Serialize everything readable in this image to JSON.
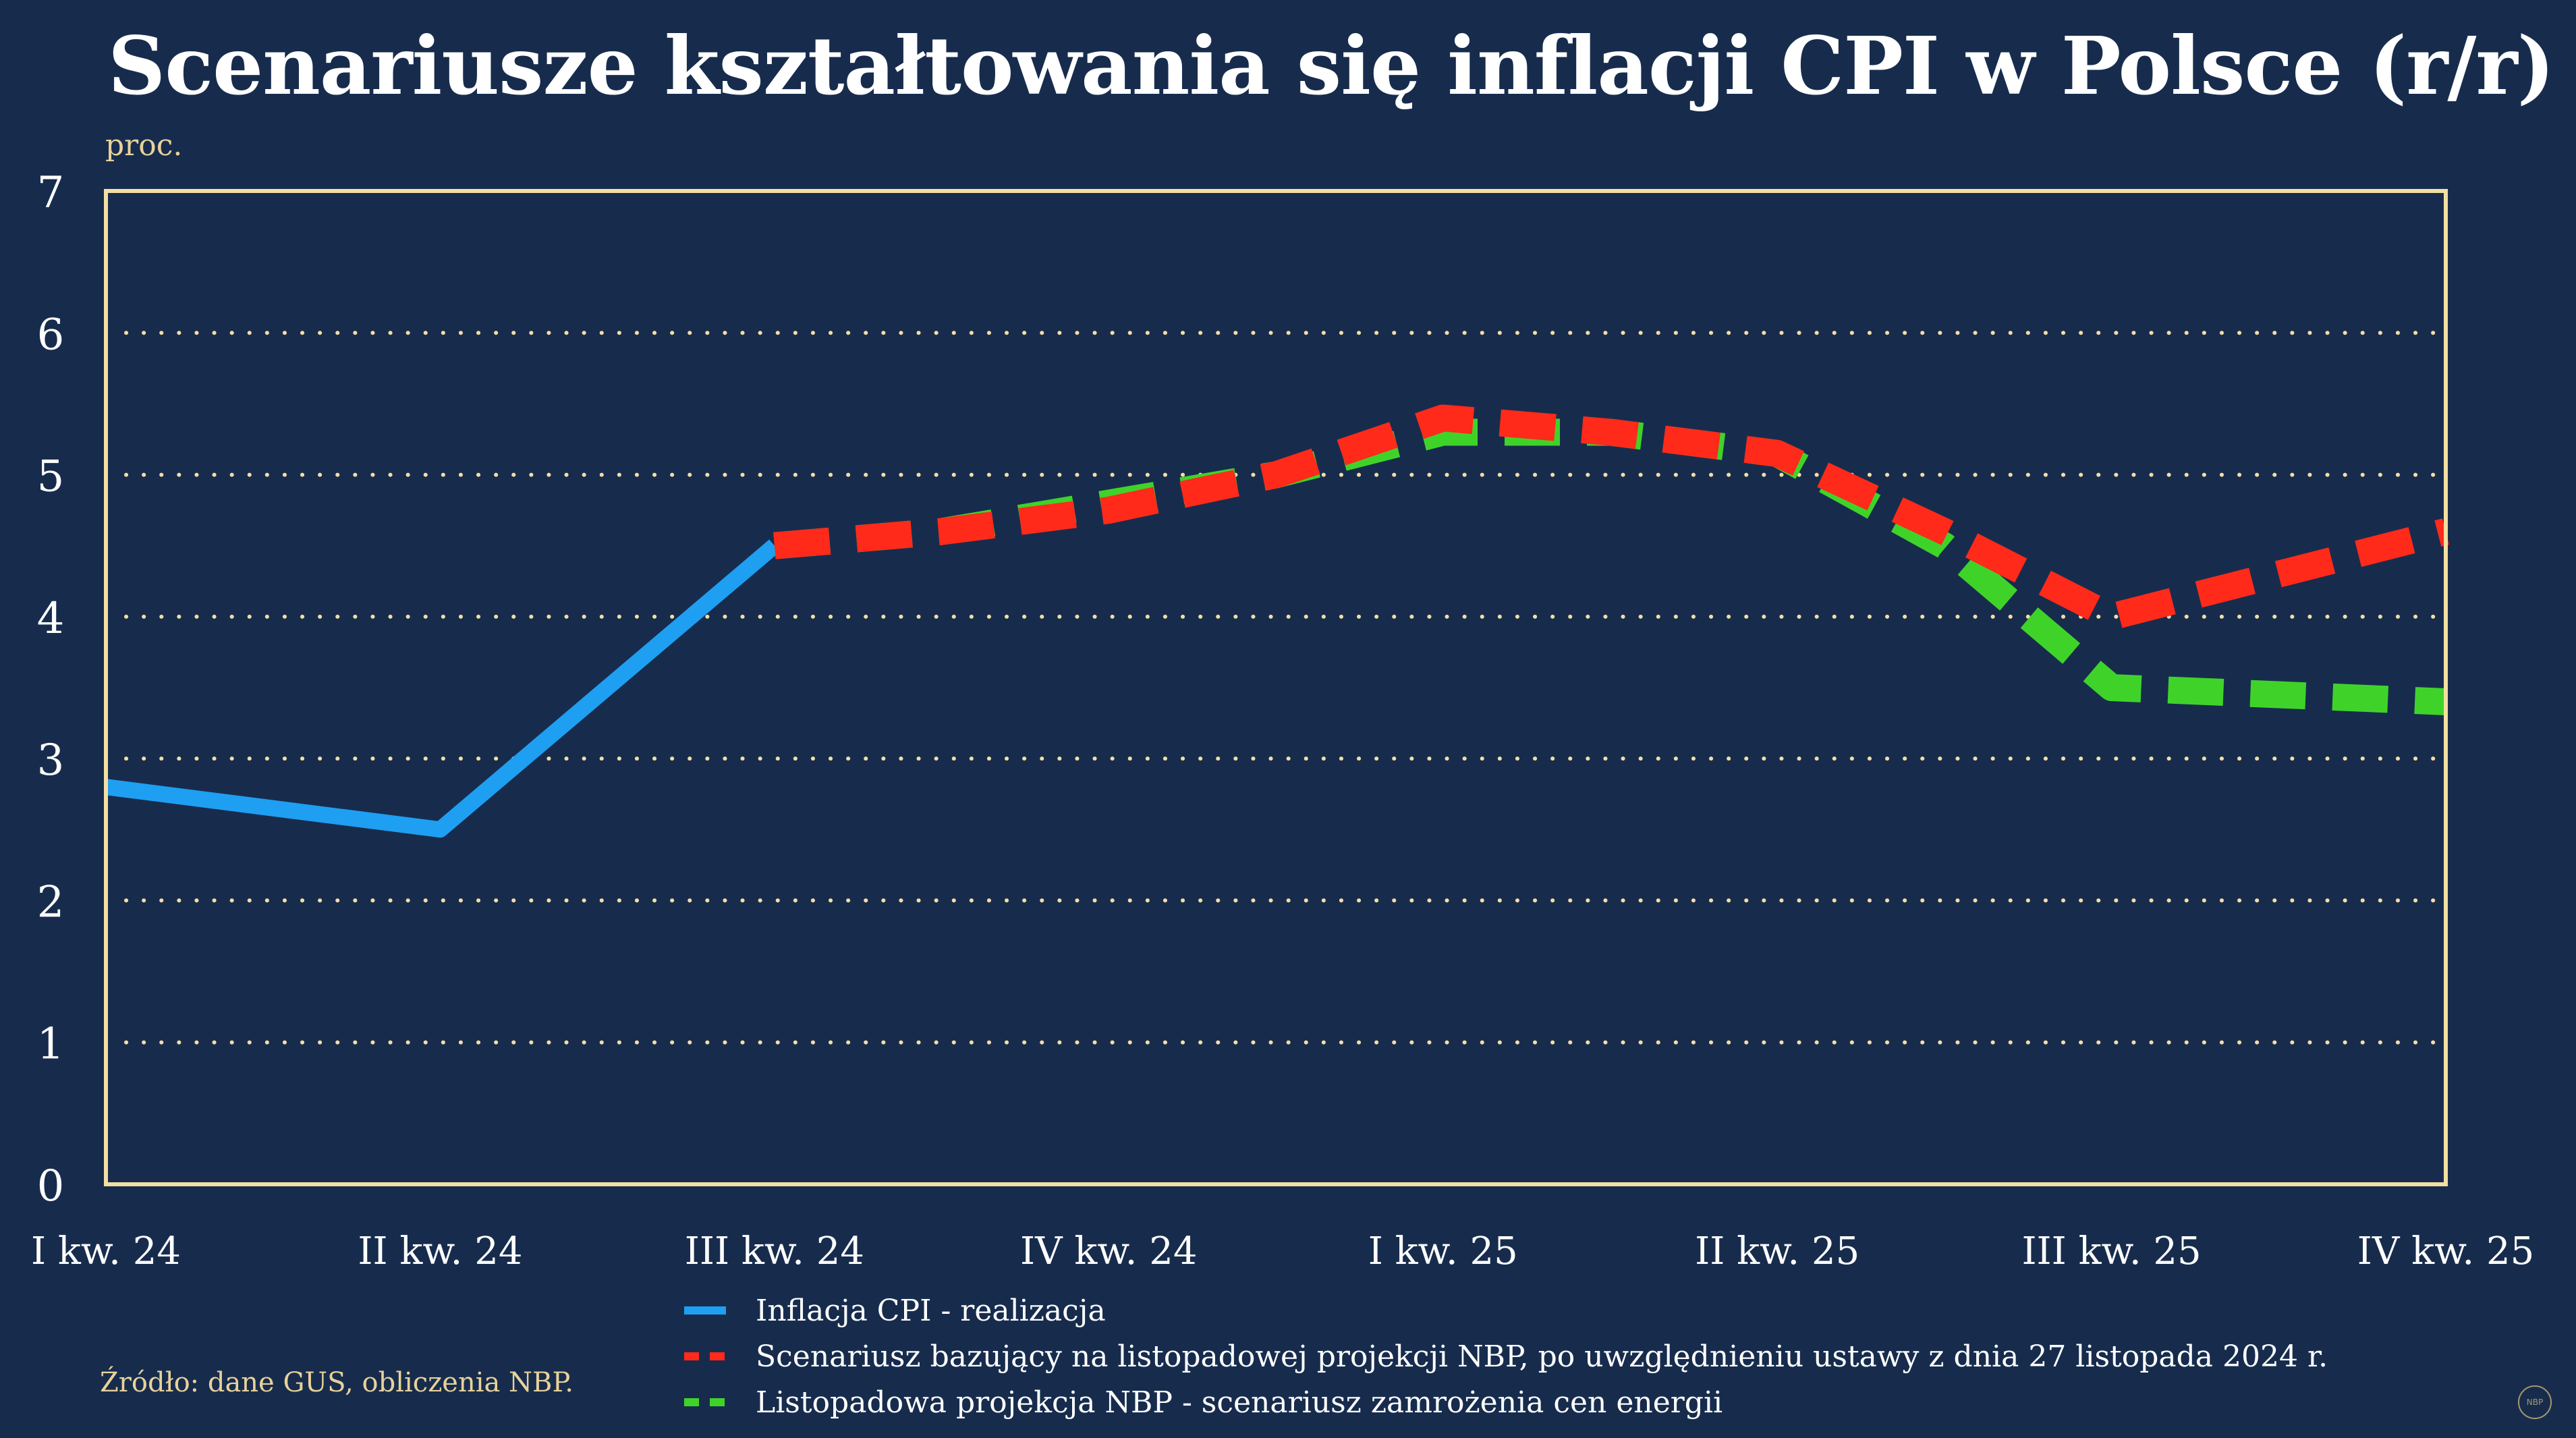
{
  "title": "Scenariusze kształtowania się inflacji CPI w Polsce (r/r)",
  "unit_label": "proc.",
  "source": "Źródło: dane GUS, obliczenia NBP.",
  "logo_text": "NBP",
  "colors": {
    "background": "#172c4d",
    "frame": "#f3dfa2",
    "grid": "#f3dfa2",
    "accent_text": "#e8d29a"
  },
  "legend": [
    {
      "label": "Inflacja CPI - realizacja",
      "color": "#1e9ff2",
      "style": "solid"
    },
    {
      "label": "Scenariusz bazujący na listopadowej projekcji NBP, po uwzględnieniu ustawy z dnia 27 listopada 2024 r.",
      "color": "#ff2a1a",
      "style": "dashed"
    },
    {
      "label": "Listopadowa projekcja NBP - scenariusz zamrożenia cen energii",
      "color": "#3fd32a",
      "style": "dashed"
    }
  ],
  "chart_data": {
    "type": "line",
    "categories": [
      "I kw. 24",
      "II kw. 24",
      "III kw. 24",
      "IV kw. 24",
      "I kw. 25",
      "II kw. 25",
      "III kw. 25",
      "IV kw. 25"
    ],
    "yticks": [
      "0",
      "1",
      "2",
      "3",
      "4",
      "5",
      "6",
      "7"
    ],
    "ylim": [
      0,
      7
    ],
    "grid": "dotted-horizontal",
    "legend_position": "bottom",
    "series": [
      {
        "name": "Inflacja CPI - realizacja",
        "color": "#1e9ff2",
        "style": "solid",
        "points": [
          [
            0,
            2.8
          ],
          [
            1,
            2.5
          ],
          [
            2,
            4.5
          ]
        ]
      },
      {
        "name": "Listopadowa projekcja NBP - scenariusz zamrożenia cen energii",
        "color": "#3fd32a",
        "style": "dashed",
        "points": [
          [
            2,
            4.5
          ],
          [
            2.5,
            4.6
          ],
          [
            3,
            4.8
          ],
          [
            3.5,
            5.0
          ],
          [
            4,
            5.3
          ],
          [
            4.5,
            5.3
          ],
          [
            5,
            5.15
          ],
          [
            5.5,
            4.5
          ],
          [
            6,
            3.5
          ],
          [
            7,
            3.4
          ]
        ]
      },
      {
        "name": "Scenariusz bazujący na listopadowej projekcji NBP, po uwzględnieniu ustawy z dnia 27 listopada 2024 r.",
        "color": "#ff2a1a",
        "style": "dashed",
        "points": [
          [
            2,
            4.5
          ],
          [
            2.5,
            4.6
          ],
          [
            3,
            4.75
          ],
          [
            3.5,
            5.0
          ],
          [
            4,
            5.4
          ],
          [
            4.5,
            5.3
          ],
          [
            5,
            5.15
          ],
          [
            5.5,
            4.6
          ],
          [
            6,
            4.0
          ],
          [
            7,
            4.6
          ]
        ]
      }
    ]
  }
}
